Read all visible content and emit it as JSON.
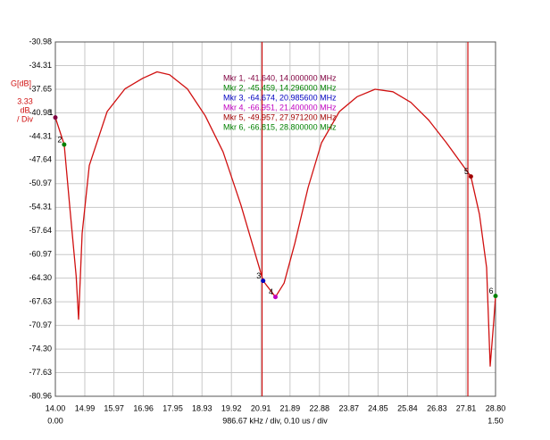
{
  "chart_data": {
    "type": "line",
    "y_label": "G[dB]",
    "y_scale_label": [
      "3.33",
      "dB",
      "/ Div"
    ],
    "x_label": "986.67 kHz / div, 0.10 us / div",
    "time_start": "0.00",
    "time_end": "1.50",
    "xlim": [
      14.0,
      28.8
    ],
    "ylim": [
      -80.96,
      -30.98
    ],
    "xticks": [
      {
        "value": 14.0,
        "label": "14.00"
      },
      14.99,
      15.97,
      16.96,
      17.95,
      18.93,
      19.92,
      20.91,
      21.89,
      22.88,
      23.87,
      24.85,
      25.84,
      26.83,
      27.81,
      {
        "value": 28.8,
        "label": "28.80"
      }
    ],
    "yticks": [
      -30.98,
      -34.31,
      -37.65,
      -40.98,
      -44.31,
      -47.64,
      -50.97,
      -54.31,
      -57.64,
      -60.97,
      {
        "value": -64.3,
        "label": "-64.30"
      },
      -67.63,
      -70.97,
      {
        "value": -74.3,
        "label": "-74.30"
      },
      -77.63,
      -80.96
    ],
    "grid": true,
    "x": [
      14.0,
      14.296,
      14.5,
      14.7,
      14.78,
      14.9,
      15.14,
      15.74,
      16.34,
      16.94,
      17.42,
      17.84,
      18.44,
      19.04,
      19.64,
      20.24,
      20.985,
      21.4,
      21.69,
      22.05,
      22.5,
      22.95,
      23.55,
      24.15,
      24.75,
      25.35,
      25.95,
      26.55,
      27.15,
      27.972,
      28.26,
      28.5,
      28.62,
      28.74,
      28.8
    ],
    "series": [
      {
        "color": "#d01010",
        "values": [
          -41.64,
          -45.459,
          -55.0,
          -64.0,
          -70.1,
          -58.0,
          -48.4,
          -40.8,
          -37.6,
          -36.1,
          -35.2,
          -35.6,
          -37.6,
          -41.4,
          -46.5,
          -54.0,
          -64.674,
          -66.951,
          -65.0,
          -59.4,
          -51.5,
          -45.2,
          -40.8,
          -38.7,
          -37.65,
          -38.0,
          -39.5,
          -42.0,
          -45.2,
          -49.957,
          -55.3,
          -62.8,
          -76.7,
          -70.4,
          -66.815
        ]
      }
    ],
    "cursors": [
      20.95,
      27.87
    ],
    "cursor_color": "#d01010",
    "markers": [
      {
        "label": "1",
        "text": "Mkr 1, -41.640, 14.000000 MHz",
        "x": 14.0,
        "y": -41.64,
        "color": "#800040"
      },
      {
        "label": "2",
        "text": "Mkr 2, -45.459, 14.296000 MHz",
        "x": 14.296,
        "y": -45.459,
        "color": "#008000"
      },
      {
        "label": "3",
        "text": "Mkr 3, -64.674, 20.985600 MHz",
        "x": 20.9856,
        "y": -64.674,
        "color": "#0000c0"
      },
      {
        "label": "4",
        "text": "Mkr 4, -66.951, 21.400000 MHz",
        "x": 21.4,
        "y": -66.951,
        "color": "#c000c0"
      },
      {
        "label": "5",
        "text": "Mkr 5, -49.957, 27.971200 MHz",
        "x": 27.9712,
        "y": -49.957,
        "color": "#a00000"
      },
      {
        "label": "6",
        "text": "Mkr 6, -66.815, 28.800000 MHz",
        "x": 28.8,
        "y": -66.815,
        "color": "#008000"
      }
    ]
  }
}
